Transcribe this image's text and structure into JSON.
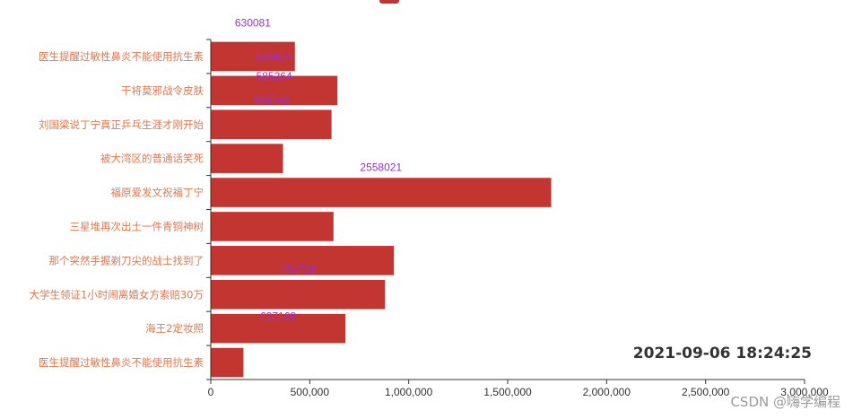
{
  "chart_data": {
    "type": "bar",
    "orientation": "horizontal",
    "categories": [
      "医生提醒过敏性鼻炎不能使用抗生素",
      "海王2定妆照",
      "大学生领证1小时闹离婚女方索赔30万",
      "那个突然手握剃刀尖的战士找到了",
      "三星堆再次出土一件青铜神树",
      "福原爱发文祝福丁宁",
      "被大湾区的普通话笑死",
      "刘国梁说丁宁真正乒乓生涯才刚开始",
      "干将莫邪战令皮肤",
      "医生提醒过敏性鼻炎不能使用抗生素"
    ],
    "values": [
      165000,
      680000,
      880000,
      925000,
      620000,
      1720000,
      365000,
      610000,
      640000,
      425000
    ],
    "data_labels": [
      {
        "text": "627168",
        "category_index": 1,
        "offset_ratio": 0.18
      },
      {
        "text": "651728",
        "category_index": 2,
        "offset_ratio": -0.2
      },
      {
        "text": "2558021",
        "category_index": 5,
        "offset_ratio": -0.2
      },
      {
        "text": "542942",
        "category_index": 7,
        "offset_ratio": -0.2
      },
      {
        "text": "560654",
        "category_index": 8,
        "offset_ratio": -0.45
      },
      {
        "text": "585264",
        "category_index": 8,
        "offset_ratio": 0.12
      },
      {
        "text": "630081",
        "category_index": 9,
        "offset_ratio": -0.45
      }
    ],
    "xlim": [
      0,
      3000000
    ],
    "xticks": [
      "0",
      "500,000",
      "1,000,000",
      "1,500,000",
      "2,000,000",
      "2,500,000",
      "3,000,000"
    ],
    "xtick_values": [
      0,
      500000,
      1000000,
      1500000,
      2000000,
      2500000,
      3000000
    ],
    "title": "",
    "xlabel": "",
    "ylabel": "",
    "grid": false,
    "legend_position": "top-center",
    "colors": {
      "bar": "#c23531",
      "category_text": "#e2764d",
      "data_label": "#9932cc",
      "axis": "#333333"
    }
  },
  "timestamp": "2021-09-06 18:24:25",
  "watermark": "CSDN @嗨学编程"
}
